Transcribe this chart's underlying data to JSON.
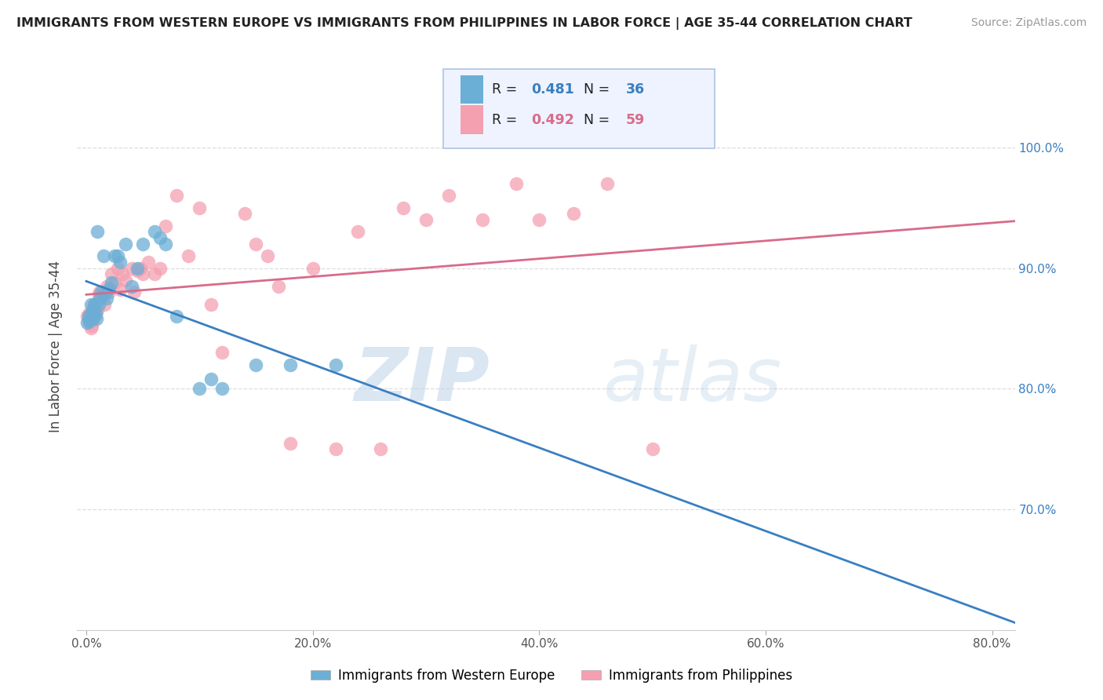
{
  "title": "IMMIGRANTS FROM WESTERN EUROPE VS IMMIGRANTS FROM PHILIPPINES IN LABOR FORCE | AGE 35-44 CORRELATION CHART",
  "source": "Source: ZipAtlas.com",
  "xlabel_bottom": "Immigrants from Western Europe",
  "xlabel_bottom2": "Immigrants from Philippines",
  "ylabel": "In Labor Force | Age 35-44",
  "r_blue": 0.481,
  "n_blue": 36,
  "r_pink": 0.492,
  "n_pink": 59,
  "x_blue": [
    0.001,
    0.002,
    0.003,
    0.004,
    0.004,
    0.005,
    0.006,
    0.007,
    0.008,
    0.009,
    0.01,
    0.011,
    0.012,
    0.013,
    0.015,
    0.016,
    0.018,
    0.02,
    0.022,
    0.025,
    0.028,
    0.03,
    0.035,
    0.04,
    0.045,
    0.05,
    0.06,
    0.065,
    0.07,
    0.08,
    0.1,
    0.11,
    0.12,
    0.15,
    0.18,
    0.22
  ],
  "y_blue": [
    0.855,
    0.86,
    0.856,
    0.862,
    0.87,
    0.858,
    0.865,
    0.87,
    0.862,
    0.858,
    0.93,
    0.87,
    0.875,
    0.88,
    0.91,
    0.878,
    0.875,
    0.883,
    0.888,
    0.91,
    0.91,
    0.905,
    0.92,
    0.885,
    0.9,
    0.92,
    0.93,
    0.925,
    0.92,
    0.86,
    0.8,
    0.808,
    0.8,
    0.82,
    0.82,
    0.82
  ],
  "x_pink": [
    0.001,
    0.002,
    0.002,
    0.003,
    0.004,
    0.004,
    0.005,
    0.005,
    0.006,
    0.007,
    0.007,
    0.008,
    0.009,
    0.01,
    0.011,
    0.012,
    0.013,
    0.015,
    0.016,
    0.018,
    0.02,
    0.022,
    0.025,
    0.028,
    0.03,
    0.032,
    0.035,
    0.04,
    0.042,
    0.045,
    0.048,
    0.05,
    0.055,
    0.06,
    0.065,
    0.07,
    0.08,
    0.09,
    0.1,
    0.11,
    0.12,
    0.14,
    0.15,
    0.16,
    0.17,
    0.18,
    0.2,
    0.22,
    0.24,
    0.26,
    0.28,
    0.3,
    0.32,
    0.35,
    0.38,
    0.4,
    0.43,
    0.46,
    0.5
  ],
  "y_pink": [
    0.86,
    0.858,
    0.862,
    0.855,
    0.85,
    0.86,
    0.852,
    0.865,
    0.858,
    0.86,
    0.87,
    0.87,
    0.865,
    0.865,
    0.878,
    0.88,
    0.875,
    0.878,
    0.87,
    0.885,
    0.88,
    0.895,
    0.888,
    0.9,
    0.882,
    0.895,
    0.89,
    0.9,
    0.88,
    0.898,
    0.9,
    0.895,
    0.905,
    0.895,
    0.9,
    0.935,
    0.96,
    0.91,
    0.95,
    0.87,
    0.83,
    0.945,
    0.92,
    0.91,
    0.885,
    0.755,
    0.9,
    0.75,
    0.93,
    0.75,
    0.95,
    0.94,
    0.96,
    0.94,
    0.97,
    0.94,
    0.945,
    0.97,
    0.75
  ],
  "xlim": [
    -0.008,
    0.82
  ],
  "ylim": [
    0.6,
    1.07
  ],
  "xticks": [
    0.0,
    0.2,
    0.4,
    0.6,
    0.8
  ],
  "xticklabels": [
    "0.0%",
    "20.0%",
    "40.0%",
    "60.0%",
    "80.0%"
  ],
  "yticks": [
    0.7,
    0.8,
    0.9,
    1.0
  ],
  "yticklabels_right": [
    "70.0%",
    "80.0%",
    "90.0%",
    "100.0%"
  ],
  "color_blue": "#6baed6",
  "color_pink": "#f4a0b0",
  "line_blue": "#3a7fc1",
  "line_pink": "#d96b8a",
  "text_color_blue": "#3a7fc1",
  "text_color_pink": "#d96b8a",
  "watermark_zip": "ZIP",
  "watermark_atlas": "atlas",
  "bg_color": "#ffffff",
  "grid_color": "#dddddd"
}
